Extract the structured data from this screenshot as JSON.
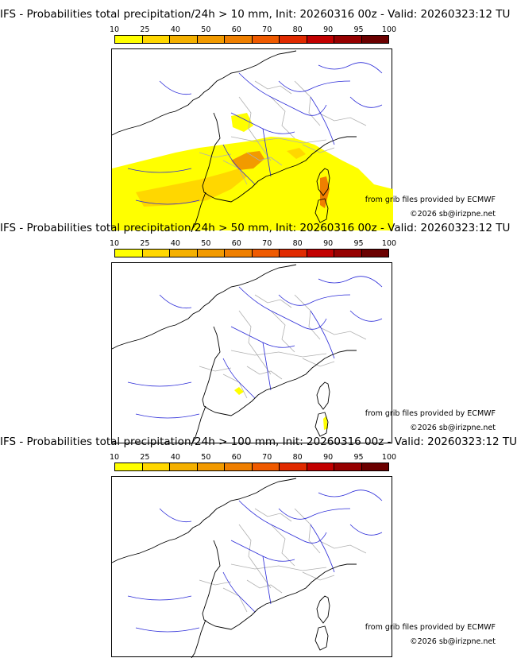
{
  "colorbar": {
    "tick_labels": [
      "10",
      "25",
      "40",
      "50",
      "60",
      "70",
      "80",
      "90",
      "95",
      "100"
    ],
    "colors": [
      "#ffff00",
      "#ffd700",
      "#f4b000",
      "#f29a00",
      "#ef7f00",
      "#ef5a00",
      "#e02a00",
      "#c20000",
      "#960000",
      "#6b0000"
    ]
  },
  "panels": [
    {
      "title": "IFS - Probabilities total precipitation/24h > 10 mm, Init: 20260316 00z - Valid: 20260323:12 TU",
      "shading": "high",
      "source_credit": "from grib files provided by ECMWF",
      "copyright": "©2026 sb@irizpne.net"
    },
    {
      "title": "IFS - Probabilities total precipitation/24h > 50 mm, Init: 20260316 00z - Valid: 20260323:12 TU",
      "shading": "low",
      "source_credit": "from grib files provided by ECMWF",
      "copyright": "©2026 sb@irizpne.net"
    },
    {
      "title": "IFS - Probabilities total precipitation/24h > 100 mm, Init: 20260316 00z - Valid: 20260323:12 TU",
      "shading": "none",
      "source_credit": "from grib files provided by ECMWF",
      "copyright": "©2026 sb@irizpne.net"
    }
  ]
}
